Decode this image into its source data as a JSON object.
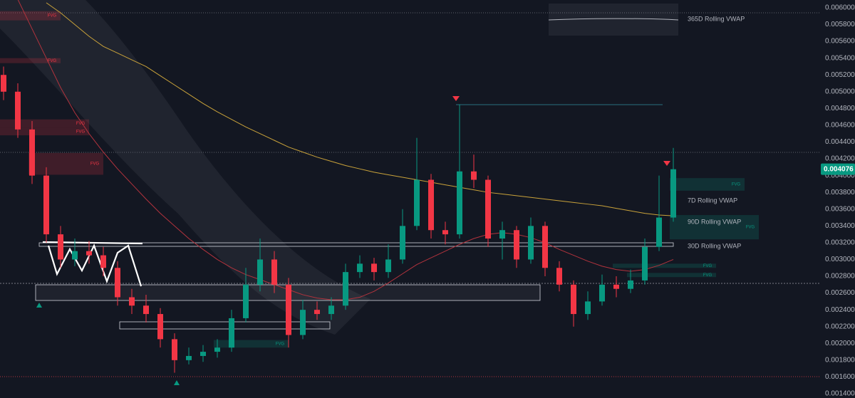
{
  "chart_data": {
    "type": "candlestick",
    "ylim": [
      0.001349,
      0.006093
    ],
    "yticks": [
      {
        "value": 0.0014,
        "label": "0.001400"
      },
      {
        "value": 0.0016,
        "label": "0.001600"
      },
      {
        "value": 0.0018,
        "label": "0.001800"
      },
      {
        "value": 0.002,
        "label": "0.002000"
      },
      {
        "value": 0.0022,
        "label": "0.002200"
      },
      {
        "value": 0.0024,
        "label": "0.002400"
      },
      {
        "value": 0.0026,
        "label": "0.002600"
      },
      {
        "value": 0.0028,
        "label": "0.002800"
      },
      {
        "value": 0.003,
        "label": "0.003000"
      },
      {
        "value": 0.0032,
        "label": "0.003200"
      },
      {
        "value": 0.0034,
        "label": "0.003400"
      },
      {
        "value": 0.0036,
        "label": "0.003600"
      },
      {
        "value": 0.0038,
        "label": "0.003800"
      },
      {
        "value": 0.004,
        "label": "0.004000"
      },
      {
        "value": 0.0042,
        "label": "0.004200"
      },
      {
        "value": 0.0044,
        "label": "0.004400"
      },
      {
        "value": 0.0046,
        "label": "0.004600"
      },
      {
        "value": 0.0048,
        "label": "0.004800"
      },
      {
        "value": 0.005,
        "label": "0.005000"
      },
      {
        "value": 0.0052,
        "label": "0.005200"
      },
      {
        "value": 0.0054,
        "label": "0.005400"
      },
      {
        "value": 0.0056,
        "label": "0.005600"
      },
      {
        "value": 0.0058,
        "label": "0.005800"
      },
      {
        "value": 0.006,
        "label": "0.006000"
      }
    ],
    "grid": false,
    "up_color": "#089981",
    "down_color": "#f23645",
    "candles": [
      {
        "open": 0.0052,
        "high": 0.0053,
        "low": 0.0049,
        "close": 0.005
      },
      {
        "open": 0.005,
        "high": 0.0051,
        "low": 0.00445,
        "close": 0.00455
      },
      {
        "open": 0.00455,
        "high": 0.00465,
        "low": 0.0039,
        "close": 0.004
      },
      {
        "open": 0.004,
        "high": 0.0041,
        "low": 0.0032,
        "close": 0.0033
      },
      {
        "open": 0.0033,
        "high": 0.0034,
        "low": 0.0029,
        "close": 0.003
      },
      {
        "open": 0.003,
        "high": 0.00325,
        "low": 0.00292,
        "close": 0.0031
      },
      {
        "open": 0.0031,
        "high": 0.00322,
        "low": 0.00295,
        "close": 0.00305
      },
      {
        "open": 0.00305,
        "high": 0.00315,
        "low": 0.0028,
        "close": 0.0029
      },
      {
        "open": 0.0029,
        "high": 0.00298,
        "low": 0.00245,
        "close": 0.00255
      },
      {
        "open": 0.00255,
        "high": 0.00265,
        "low": 0.00235,
        "close": 0.00245
      },
      {
        "open": 0.00245,
        "high": 0.00258,
        "low": 0.00225,
        "close": 0.00235
      },
      {
        "open": 0.00235,
        "high": 0.00242,
        "low": 0.00195,
        "close": 0.00205
      },
      {
        "open": 0.00205,
        "high": 0.00212,
        "low": 0.00165,
        "close": 0.0018
      },
      {
        "open": 0.0018,
        "high": 0.00195,
        "low": 0.00175,
        "close": 0.00185
      },
      {
        "open": 0.00185,
        "high": 0.00198,
        "low": 0.00178,
        "close": 0.0019
      },
      {
        "open": 0.0019,
        "high": 0.00205,
        "low": 0.00183,
        "close": 0.00195
      },
      {
        "open": 0.00195,
        "high": 0.0024,
        "low": 0.0019,
        "close": 0.0023
      },
      {
        "open": 0.0023,
        "high": 0.0029,
        "low": 0.00225,
        "close": 0.0027
      },
      {
        "open": 0.0027,
        "high": 0.00325,
        "low": 0.00262,
        "close": 0.003
      },
      {
        "open": 0.003,
        "high": 0.0031,
        "low": 0.0026,
        "close": 0.0027
      },
      {
        "open": 0.0027,
        "high": 0.00278,
        "low": 0.00195,
        "close": 0.0021
      },
      {
        "open": 0.0021,
        "high": 0.00252,
        "low": 0.00205,
        "close": 0.0024
      },
      {
        "open": 0.0024,
        "high": 0.0025,
        "low": 0.00228,
        "close": 0.00235
      },
      {
        "open": 0.00235,
        "high": 0.00255,
        "low": 0.00228,
        "close": 0.00245
      },
      {
        "open": 0.00245,
        "high": 0.00295,
        "low": 0.0024,
        "close": 0.00285
      },
      {
        "open": 0.00285,
        "high": 0.00305,
        "low": 0.00278,
        "close": 0.00295
      },
      {
        "open": 0.00295,
        "high": 0.00302,
        "low": 0.00275,
        "close": 0.00285
      },
      {
        "open": 0.00285,
        "high": 0.00318,
        "low": 0.00278,
        "close": 0.003
      },
      {
        "open": 0.003,
        "high": 0.0036,
        "low": 0.00295,
        "close": 0.0034
      },
      {
        "open": 0.0034,
        "high": 0.00445,
        "low": 0.00335,
        "close": 0.00395
      },
      {
        "open": 0.00395,
        "high": 0.00402,
        "low": 0.00325,
        "close": 0.00335
      },
      {
        "open": 0.00335,
        "high": 0.00345,
        "low": 0.00318,
        "close": 0.0033
      },
      {
        "open": 0.0033,
        "high": 0.00485,
        "low": 0.00325,
        "close": 0.00405
      },
      {
        "open": 0.00405,
        "high": 0.00425,
        "low": 0.00385,
        "close": 0.00395
      },
      {
        "open": 0.00395,
        "high": 0.004,
        "low": 0.00315,
        "close": 0.00325
      },
      {
        "open": 0.00325,
        "high": 0.00345,
        "low": 0.003,
        "close": 0.00335
      },
      {
        "open": 0.00335,
        "high": 0.0034,
        "low": 0.0029,
        "close": 0.003
      },
      {
        "open": 0.003,
        "high": 0.0035,
        "low": 0.00295,
        "close": 0.0034
      },
      {
        "open": 0.0034,
        "high": 0.00345,
        "low": 0.0028,
        "close": 0.0029
      },
      {
        "open": 0.0029,
        "high": 0.00298,
        "low": 0.00262,
        "close": 0.0027
      },
      {
        "open": 0.0027,
        "high": 0.00275,
        "low": 0.0022,
        "close": 0.00235
      },
      {
        "open": 0.00235,
        "high": 0.00262,
        "low": 0.00228,
        "close": 0.0025
      },
      {
        "open": 0.0025,
        "high": 0.00282,
        "low": 0.00245,
        "close": 0.0027
      },
      {
        "open": 0.0027,
        "high": 0.0028,
        "low": 0.00255,
        "close": 0.00265
      },
      {
        "open": 0.00265,
        "high": 0.00288,
        "low": 0.0026,
        "close": 0.00275
      },
      {
        "open": 0.00275,
        "high": 0.00325,
        "low": 0.0027,
        "close": 0.00315
      },
      {
        "open": 0.00315,
        "high": 0.004,
        "low": 0.0031,
        "close": 0.0035
      },
      {
        "open": 0.0035,
        "high": 0.00433,
        "low": 0.00345,
        "close": 0.004076
      }
    ],
    "overlays": [
      {
        "color": "#c9a23a",
        "values": [
          null,
          null,
          null,
          0.00606,
          0.00594,
          0.0058,
          0.00566,
          0.00554,
          0.00546,
          0.00538,
          0.0053,
          0.00519,
          0.00508,
          0.00497,
          0.00486,
          0.00476,
          0.00467,
          0.00458,
          0.0045,
          0.00442,
          0.00434,
          0.00428,
          0.00422,
          0.00417,
          0.00412,
          0.00408,
          0.00404,
          0.00401,
          0.00398,
          0.00395,
          0.00392,
          0.00389,
          0.00386,
          0.00383,
          0.0038,
          0.00378,
          0.00376,
          0.00374,
          0.00372,
          0.0037,
          0.00368,
          0.00366,
          0.00364,
          0.00361,
          0.00358,
          0.00355,
          0.00353,
          0.00352
        ]
      },
      {
        "color": "#b2333d",
        "values": [
          null,
          0.0061,
          0.00575,
          0.0054,
          0.00505,
          0.00475,
          0.0045,
          0.00428,
          0.00408,
          0.0039,
          0.00372,
          0.00355,
          0.0034,
          0.00325,
          0.00312,
          0.003,
          0.0029,
          0.00282,
          0.00276,
          0.0027,
          0.00264,
          0.00258,
          0.00254,
          0.00252,
          0.00252,
          0.00255,
          0.00262,
          0.00272,
          0.00283,
          0.00294,
          0.00302,
          0.0031,
          0.00318,
          0.00325,
          0.0033,
          0.00332,
          0.0033,
          0.00326,
          0.0032,
          0.00312,
          0.00305,
          0.00298,
          0.00292,
          0.00288,
          0.00286,
          0.00288,
          0.00293,
          0.003
        ]
      }
    ],
    "fvg_zones": [
      {
        "label": "FVG",
        "from": 0,
        "to": 4,
        "top": 0.00596,
        "bottom": 0.00585,
        "color": "#f23645"
      },
      {
        "label": "FVG",
        "from": 0,
        "to": 4,
        "top": 0.0054,
        "bottom": 0.00534,
        "color": "#f23645"
      },
      {
        "label": "FVG",
        "from": 0,
        "to": 6,
        "top": 0.00467,
        "bottom": 0.00457,
        "color": "#f23645"
      },
      {
        "label": "FVG",
        "from": 0,
        "to": 6,
        "top": 0.00457,
        "bottom": 0.00448,
        "color": "#f23645"
      },
      {
        "label": "FVG",
        "from": 2,
        "to": 7,
        "top": 0.00427,
        "bottom": 0.00401,
        "color": "#f23645"
      },
      {
        "label": "FVG",
        "from": 47,
        "to": 52,
        "top": 0.00397,
        "bottom": 0.00382,
        "color": "#089981"
      },
      {
        "label": "FVG",
        "from": 47,
        "to": 53,
        "top": 0.00353,
        "bottom": 0.00324,
        "color": "#089981"
      },
      {
        "label": "FVG",
        "from": 43,
        "to": 50,
        "top": 0.00295,
        "bottom": 0.0029,
        "color": "#089981"
      },
      {
        "label": "FVG",
        "from": 44,
        "to": 50,
        "top": 0.00284,
        "bottom": 0.00279,
        "color": "#089981"
      },
      {
        "label": "FVG",
        "from": 15,
        "to": 20,
        "top": 0.00204,
        "bottom": 0.00195,
        "color": "#089981"
      }
    ],
    "annotations": [
      "365D Rolling VWAP",
      "7D Rolling VWAP",
      "90D Rolling VWAP",
      "30D Rolling VWAP"
    ]
  }
}
